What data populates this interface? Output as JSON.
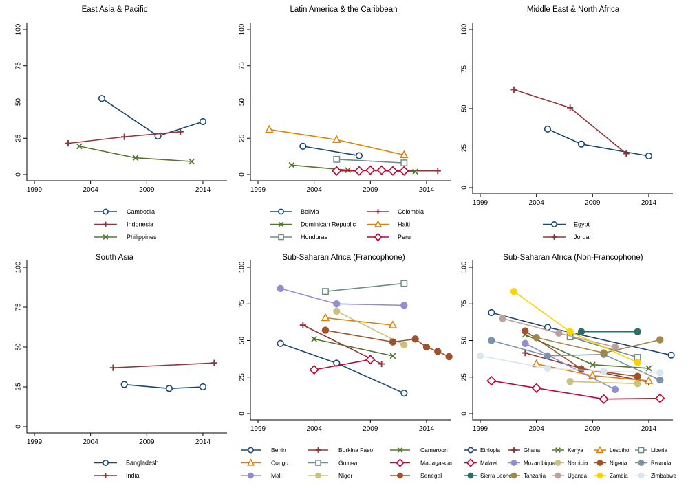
{
  "figure": {
    "background": "#ffffff",
    "text_color": "#000000",
    "axis_color": "#000000"
  },
  "chart_data": [
    {
      "type": "line",
      "title": "East Asia & Pacific",
      "xlabel": "",
      "ylabel": "",
      "xlim": [
        1998,
        2017
      ],
      "ylim": [
        0,
        100
      ],
      "x_ticks": [
        "1999",
        "2004",
        "2009",
        "2014"
      ],
      "y_ticks": [
        "0",
        "25",
        "50",
        "75",
        "100"
      ],
      "grid": false,
      "legend_position": "bottom-center",
      "legend_columns": 1,
      "series": [
        {
          "name": "Cambodia",
          "color": "#1a476f",
          "marker": "circle_hollow",
          "x": [
            2005,
            2010,
            2014
          ],
          "y": [
            52.5,
            26.5,
            36.5
          ]
        },
        {
          "name": "Indonesia",
          "color": "#90353b",
          "marker": "plus",
          "x": [
            2002,
            2007,
            2012
          ],
          "y": [
            21.5,
            26,
            29.5
          ]
        },
        {
          "name": "Philippines",
          "color": "#55752f",
          "marker": "x",
          "x": [
            2003,
            2008,
            2013
          ],
          "y": [
            19.5,
            11.5,
            9
          ]
        }
      ]
    },
    {
      "type": "line",
      "title": "Latin America & the Caribbean",
      "xlabel": "",
      "ylabel": "",
      "xlim": [
        1998,
        2017
      ],
      "ylim": [
        0,
        100
      ],
      "x_ticks": [
        "1999",
        "2004",
        "2009",
        "2014"
      ],
      "y_ticks": [
        "0",
        "25",
        "50",
        "75",
        "100"
      ],
      "grid": false,
      "legend_position": "bottom-center",
      "legend_columns": 2,
      "series": [
        {
          "name": "Bolivia",
          "color": "#1a476f",
          "marker": "circle_hollow",
          "x": [
            2003,
            2008
          ],
          "y": [
            19.5,
            13
          ]
        },
        {
          "name": "Colombia",
          "color": "#90353b",
          "marker": "plus",
          "x": [
            2010,
            2015
          ],
          "y": [
            2.5,
            2.5
          ]
        },
        {
          "name": "Dominican Republic",
          "color": "#55752f",
          "marker": "x",
          "x": [
            2002,
            2007,
            2013
          ],
          "y": [
            6.5,
            3,
            2
          ]
        },
        {
          "name": "Haiti",
          "color": "#e37e00",
          "marker": "triangle_hollow",
          "x": [
            2000,
            2006,
            2012
          ],
          "y": [
            31,
            24,
            13.5
          ]
        },
        {
          "name": "Honduras",
          "color": "#6e8e84",
          "marker": "square_hollow",
          "x": [
            2006,
            2012
          ],
          "y": [
            10.5,
            8
          ]
        },
        {
          "name": "Peru",
          "color": "#c10534",
          "marker": "diamond_hollow",
          "x": [
            2006,
            2008,
            2009,
            2010,
            2011,
            2012
          ],
          "y": [
            2.5,
            2.5,
            3,
            3,
            2.5,
            2.5
          ]
        }
      ]
    },
    {
      "type": "line",
      "title": "Middle East & North Africa",
      "xlabel": "",
      "ylabel": "",
      "xlim": [
        1998,
        2017
      ],
      "ylim": [
        0,
        100
      ],
      "x_ticks": [
        "1999",
        "2004",
        "2009",
        "2014"
      ],
      "y_ticks": [
        "0",
        "25",
        "50",
        "75",
        "100"
      ],
      "grid": false,
      "legend_position": "bottom-center",
      "legend_columns": 1,
      "series": [
        {
          "name": "Egypt",
          "color": "#1a476f",
          "marker": "circle_hollow",
          "x": [
            2005,
            2008,
            2014
          ],
          "y": [
            37,
            27.5,
            20
          ]
        },
        {
          "name": "Jordan",
          "color": "#90353b",
          "marker": "plus",
          "x": [
            2002,
            2007,
            2012
          ],
          "y": [
            62,
            50.5,
            21.5
          ]
        }
      ]
    },
    {
      "type": "line",
      "title": "South Asia",
      "xlabel": "",
      "ylabel": "",
      "xlim": [
        1998,
        2017
      ],
      "ylim": [
        0,
        100
      ],
      "x_ticks": [
        "1999",
        "2004",
        "2009",
        "2014"
      ],
      "y_ticks": [
        "0",
        "25",
        "50",
        "75",
        "100"
      ],
      "grid": false,
      "legend_position": "bottom-center",
      "legend_columns": 1,
      "series": [
        {
          "name": "Bangladesh",
          "color": "#1a476f",
          "marker": "circle_hollow",
          "x": [
            2007,
            2011,
            2014
          ],
          "y": [
            26.5,
            24,
            25
          ]
        },
        {
          "name": "India",
          "color": "#90353b",
          "marker": "plus",
          "x": [
            2006,
            2015
          ],
          "y": [
            37,
            40
          ]
        }
      ]
    },
    {
      "type": "line",
      "title": "Sub-Saharan Africa (Francophone)",
      "xlabel": "",
      "ylabel": "",
      "xlim": [
        1998,
        2017
      ],
      "ylim": [
        0,
        100
      ],
      "x_ticks": [
        "1999",
        "2004",
        "2009",
        "2014"
      ],
      "y_ticks": [
        "0",
        "25",
        "50",
        "75",
        "100"
      ],
      "grid": false,
      "legend_position": "bottom-center",
      "legend_columns": 3,
      "series": [
        {
          "name": "Benin",
          "color": "#1a476f",
          "marker": "circle_hollow",
          "x": [
            2001,
            2006,
            2012
          ],
          "y": [
            48,
            34.5,
            14
          ]
        },
        {
          "name": "Burkina Faso",
          "color": "#90353b",
          "marker": "plus",
          "x": [
            2003,
            2010
          ],
          "y": [
            60.5,
            34
          ]
        },
        {
          "name": "Cameroon",
          "color": "#55752f",
          "marker": "x",
          "x": [
            2004,
            2011
          ],
          "y": [
            51,
            39.5
          ]
        },
        {
          "name": "Congo",
          "color": "#e37e00",
          "marker": "triangle_hollow",
          "x": [
            2005,
            2011
          ],
          "y": [
            65.5,
            60.5
          ]
        },
        {
          "name": "Guinea",
          "color": "#6e8e84",
          "marker": "square_hollow",
          "x": [
            2005,
            2012
          ],
          "y": [
            83.5,
            89
          ]
        },
        {
          "name": "Madagascar",
          "color": "#c10534",
          "marker": "diamond_hollow",
          "x": [
            2004,
            2009
          ],
          "y": [
            30,
            37
          ]
        },
        {
          "name": "Mali",
          "color": "#938dd2",
          "marker": "circle_fill",
          "x": [
            2001,
            2006,
            2012
          ],
          "y": [
            85.5,
            75,
            74
          ]
        },
        {
          "name": "Niger",
          "color": "#cac27e",
          "marker": "circle_fill",
          "x": [
            2006,
            2012
          ],
          "y": [
            70,
            47
          ]
        },
        {
          "name": "Senegal",
          "color": "#a0522d",
          "marker": "circle_fill",
          "x": [
            2005,
            2011,
            2013,
            2014,
            2015,
            2016
          ],
          "y": [
            57,
            49,
            51,
            45.5,
            42.5,
            39
          ]
        }
      ]
    },
    {
      "type": "line",
      "title": "Sub-Saharan Africa (Non-Francophone)",
      "xlabel": "",
      "ylabel": "",
      "xlim": [
        1998,
        2017
      ],
      "ylim": [
        0,
        100
      ],
      "x_ticks": [
        "1999",
        "2004",
        "2009",
        "2014"
      ],
      "y_ticks": [
        "0",
        "25",
        "50",
        "75",
        "100"
      ],
      "grid": false,
      "legend_position": "bottom-center",
      "legend_columns": 5,
      "series": [
        {
          "name": "Ethiopia",
          "color": "#1a476f",
          "marker": "circle_hollow",
          "x": [
            2000,
            2005,
            2016
          ],
          "y": [
            69,
            59,
            40
          ]
        },
        {
          "name": "Ghana",
          "color": "#90353b",
          "marker": "plus",
          "x": [
            2003,
            2008,
            2014
          ],
          "y": [
            41.5,
            31,
            21.5
          ]
        },
        {
          "name": "Kenya",
          "color": "#55752f",
          "marker": "x",
          "x": [
            2003,
            2009,
            2014
          ],
          "y": [
            54,
            33.5,
            31
          ]
        },
        {
          "name": "Lesotho",
          "color": "#e37e00",
          "marker": "triangle_hollow",
          "x": [
            2004,
            2009,
            2014
          ],
          "y": [
            34,
            26,
            22.5
          ]
        },
        {
          "name": "Liberia",
          "color": "#6e8e84",
          "marker": "square_hollow",
          "x": [
            2007,
            2013
          ],
          "y": [
            52.5,
            38.5
          ]
        },
        {
          "name": "Malawi",
          "color": "#c10534",
          "marker": "diamond_hollow",
          "x": [
            2000,
            2004,
            2010,
            2015
          ],
          "y": [
            22.5,
            17.5,
            10,
            10.5
          ]
        },
        {
          "name": "Mozambique",
          "color": "#938dd2",
          "marker": "circle_fill",
          "x": [
            2003,
            2011
          ],
          "y": [
            48,
            16.5
          ]
        },
        {
          "name": "Namibia",
          "color": "#cac27e",
          "marker": "circle_fill",
          "x": [
            2007,
            2013
          ],
          "y": [
            22,
            20.5
          ]
        },
        {
          "name": "Nigeria",
          "color": "#a0522d",
          "marker": "circle_fill",
          "x": [
            2003,
            2008,
            2013
          ],
          "y": [
            56.5,
            30.5,
            25.5
          ]
        },
        {
          "name": "Rwanda",
          "color": "#7b92a8",
          "marker": "circle_fill",
          "x": [
            2000,
            2005,
            2010,
            2015
          ],
          "y": [
            50,
            39.5,
            40.5,
            23
          ]
        },
        {
          "name": "Sierra Leone",
          "color": "#2d6d66",
          "marker": "circle_fill",
          "x": [
            2008,
            2013
          ],
          "y": [
            56,
            56
          ]
        },
        {
          "name": "Tanzania",
          "color": "#9c8847",
          "marker": "circle_fill",
          "x": [
            2004,
            2010,
            2015
          ],
          "y": [
            52,
            41.5,
            50.5
          ]
        },
        {
          "name": "Uganda",
          "color": "#bfa19c",
          "marker": "circle_fill",
          "x": [
            2001,
            2006,
            2011
          ],
          "y": [
            65,
            55,
            45.5
          ]
        },
        {
          "name": "Zambia",
          "color": "#ffd200",
          "marker": "circle_fill",
          "x": [
            2002,
            2007,
            2013
          ],
          "y": [
            83.5,
            56,
            35
          ]
        },
        {
          "name": "Zimbabwe",
          "color": "#d9e6eb",
          "marker": "circle_fill",
          "x": [
            1999,
            2005,
            2010,
            2015
          ],
          "y": [
            39.5,
            31,
            29,
            28
          ]
        }
      ]
    }
  ]
}
